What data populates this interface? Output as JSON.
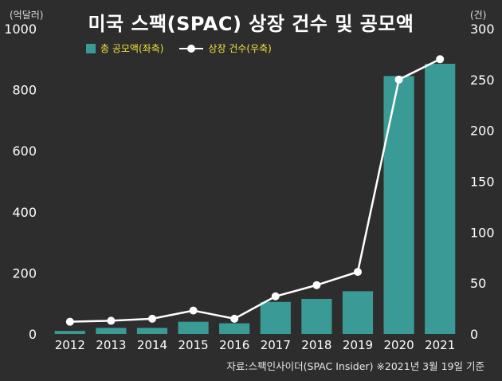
{
  "title": "미국 스팩(SPAC) 상장 건수 및 공모액",
  "unit_left": "(억달러)",
  "unit_right": "(건)",
  "source": "자료:스팩인사이더(SPAC Insider) ※2021년 3월 19일 기준",
  "colors": {
    "bar": "#3a9a96",
    "line": "#ffffff",
    "legend_text": "#f5e13a",
    "background": "#2d2d2d"
  },
  "chart_data": {
    "type": "bar+line",
    "title": "미국 스팩(SPAC) 상장 건수 및 공모액",
    "categories": [
      "2012",
      "2013",
      "2014",
      "2015",
      "2016",
      "2017",
      "2018",
      "2019",
      "2020",
      "2021"
    ],
    "series": [
      {
        "name": "총 공모액(좌축)",
        "type": "bar",
        "axis": "left",
        "values": [
          10,
          20,
          20,
          40,
          35,
          105,
          115,
          140,
          845,
          885
        ]
      },
      {
        "name": "상장 건수(우축)",
        "type": "line",
        "axis": "right",
        "values": [
          12,
          13,
          15,
          23,
          15,
          37,
          48,
          61,
          250,
          270
        ]
      }
    ],
    "y_left": {
      "min": 0,
      "max": 1000,
      "ticks": [
        0,
        200,
        400,
        600,
        800,
        1000
      ]
    },
    "y_right": {
      "min": 0,
      "max": 300,
      "ticks": [
        0,
        50,
        100,
        150,
        200,
        250,
        300
      ]
    },
    "legend_position": "top-left",
    "grid": false
  }
}
